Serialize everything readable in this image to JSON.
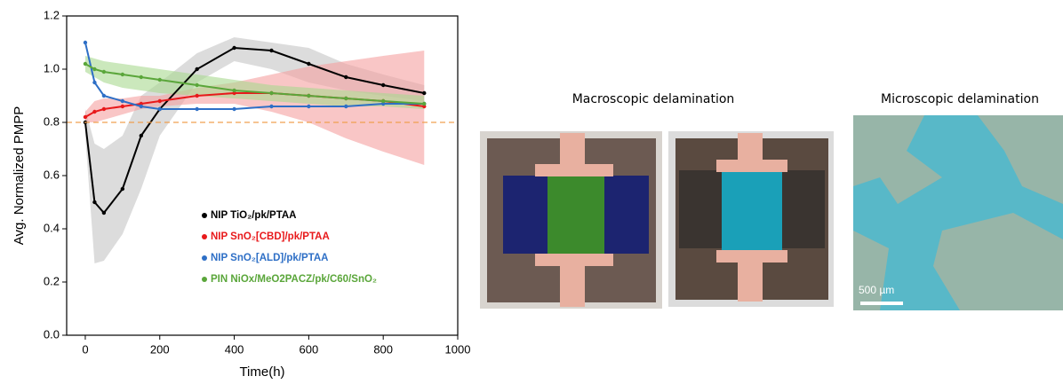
{
  "chart_data": {
    "type": "line",
    "xlabel": "Time(h)",
    "ylabel": "Avg. Normalized PMPP",
    "xlim": [
      -50,
      1000
    ],
    "ylim": [
      0.0,
      1.2
    ],
    "xticks": [
      0,
      200,
      400,
      600,
      800,
      1000
    ],
    "yticks": [
      {
        "value": 0.0,
        "label": "0.0"
      },
      0.2,
      0.4,
      0.6,
      0.8,
      {
        "value": 1.0,
        "label": "1.0"
      },
      1.2
    ],
    "hline": {
      "value": 0.8,
      "color": "#f0a050"
    },
    "x": [
      0,
      25,
      50,
      100,
      150,
      200,
      300,
      400,
      500,
      600,
      700,
      800,
      910
    ],
    "series": [
      {
        "name": "NIP TiO₂/pk/PTAA",
        "color": "#000000",
        "band_color": "#c4c4c4",
        "values": [
          0.8,
          0.5,
          0.46,
          0.55,
          0.75,
          0.85,
          1.0,
          1.08,
          1.07,
          1.02,
          0.97,
          0.94,
          0.91
        ],
        "band_low": [
          0.75,
          0.27,
          0.28,
          0.38,
          0.55,
          0.75,
          0.95,
          1.03,
          1.0,
          0.95,
          0.92,
          0.9,
          0.88
        ],
        "band_high": [
          0.85,
          0.72,
          0.7,
          0.75,
          0.9,
          0.95,
          1.06,
          1.12,
          1.1,
          1.08,
          1.02,
          0.98,
          0.94
        ]
      },
      {
        "name": "NIP SnO₂[CBD]/pk/PTAA",
        "color": "#e8191b",
        "band_color": "#f5a0a0",
        "values": [
          0.82,
          0.84,
          0.85,
          0.86,
          0.87,
          0.88,
          0.9,
          0.91,
          0.91,
          0.9,
          0.89,
          0.88,
          0.86
        ],
        "band_low": [
          0.8,
          0.8,
          0.81,
          0.83,
          0.85,
          0.86,
          0.87,
          0.87,
          0.84,
          0.8,
          0.74,
          0.69,
          0.64
        ],
        "band_high": [
          0.84,
          0.88,
          0.89,
          0.89,
          0.9,
          0.9,
          0.93,
          0.95,
          0.98,
          1.01,
          1.03,
          1.05,
          1.07
        ]
      },
      {
        "name": "NIP SnO₂[ALD]/pk/PTAA",
        "color": "#2e6fc6",
        "values": [
          1.1,
          0.95,
          0.9,
          0.88,
          0.86,
          0.85,
          0.85,
          0.85,
          0.86,
          0.86,
          0.86,
          0.87,
          0.87
        ]
      },
      {
        "name": "PIN NiOx/MeO2PACZ/pk/C60/SnO₂",
        "color": "#5aa63a",
        "band_color": "#a8d890",
        "values": [
          1.02,
          1.0,
          0.99,
          0.98,
          0.97,
          0.96,
          0.94,
          0.92,
          0.91,
          0.9,
          0.89,
          0.88,
          0.87
        ],
        "band_low": [
          0.99,
          0.97,
          0.95,
          0.93,
          0.92,
          0.91,
          0.9,
          0.89,
          0.88,
          0.87,
          0.86,
          0.86,
          0.85
        ],
        "band_high": [
          1.05,
          1.04,
          1.03,
          1.02,
          1.01,
          1.0,
          0.98,
          0.96,
          0.94,
          0.93,
          0.92,
          0.91,
          0.9
        ]
      }
    ]
  },
  "panels": {
    "macro_label": "Macroscopic delamination",
    "micro_label": "Microscopic delamination",
    "scale_bar": "500 µm"
  }
}
